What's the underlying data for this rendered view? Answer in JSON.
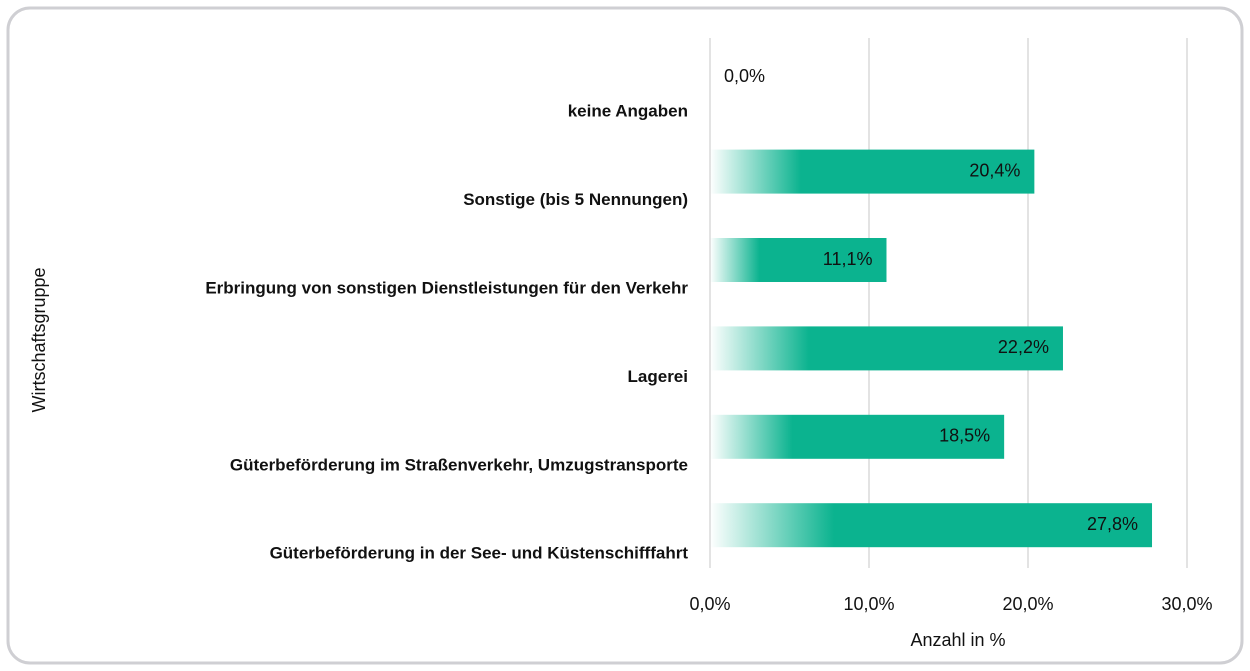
{
  "chart_data": {
    "type": "bar",
    "orientation": "horizontal",
    "categories": [
      "keine Angaben",
      "Sonstige (bis 5 Nennungen)",
      "Erbringung von sonstigen Dienstleistungen für den Verkehr",
      "Lagerei",
      "Güterbeförderung im Straßenverkehr, Umzugstransporte",
      "Güterbeförderung in der See- und Küstenschifffahrt"
    ],
    "values": [
      0.0,
      20.4,
      11.1,
      22.2,
      18.5,
      27.8
    ],
    "value_labels": [
      "0,0%",
      "20,4%",
      "11,1%",
      "22,2%",
      "18,5%",
      "27,8%"
    ],
    "color": "#0bb38f",
    "xlim": [
      0,
      30
    ],
    "xticks": [
      {
        "value": 0,
        "label": "0,0%"
      },
      {
        "value": 10,
        "label": "10,0%"
      },
      {
        "value": 20,
        "label": "20,0%"
      },
      {
        "value": 30,
        "label": "30,0%"
      }
    ],
    "xlabel": "Anzahl in %",
    "ylabel": "Wirtschaftsgruppe",
    "grid": true
  }
}
